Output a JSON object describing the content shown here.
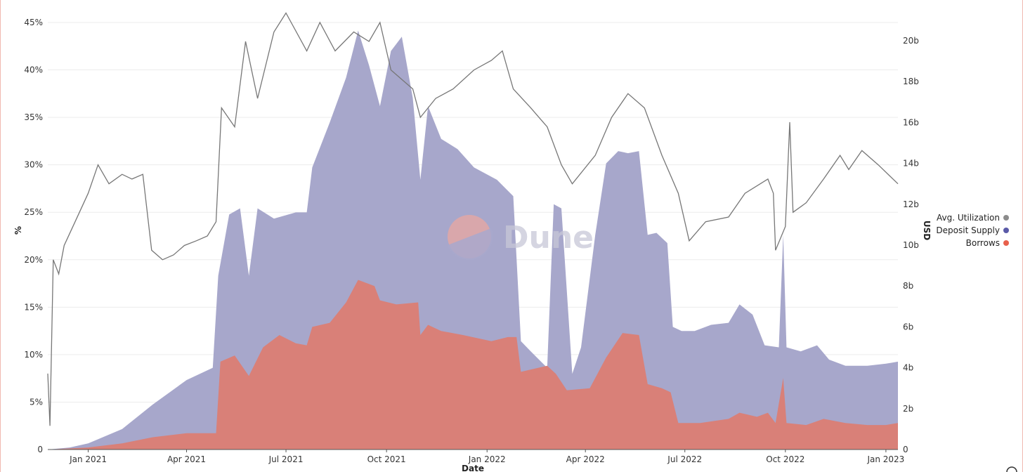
{
  "chart_data": {
    "type": "area",
    "xlabel": "Date",
    "ylabel_left": "%",
    "ylabel_right": "USD",
    "x_ticks": [
      "Jan 2021",
      "Apr 2021",
      "Jul 2021",
      "Oct 2021",
      "Jan 2022",
      "Apr 2022",
      "Jul 2022",
      "Oct 2022",
      "Jan 2023"
    ],
    "y_left_ticks": [
      "0",
      "5%",
      "10%",
      "15%",
      "20%",
      "25%",
      "30%",
      "35%",
      "40%",
      "45%"
    ],
    "y_right_ticks": [
      "0",
      "2b",
      "4b",
      "6b",
      "8b",
      "10b",
      "12b",
      "14b",
      "16b",
      "18b",
      "20b"
    ],
    "y_left_range": [
      0,
      45
    ],
    "y_right_range": [
      0,
      20
    ],
    "x_range": [
      "2020-11-25",
      "2023-01-12"
    ],
    "grid": true,
    "legend_position": "right",
    "legend": [
      {
        "name": "Avg. Utilization",
        "color": "#8c8c8c"
      },
      {
        "name": "Deposit Supply",
        "color": "#5a5aa8"
      },
      {
        "name": "Borrows",
        "color": "#e8604c"
      }
    ],
    "watermark": "Dune",
    "colors": {
      "deposit": "#a7a7cb",
      "borrows": "#d98078",
      "utilization": "#777777"
    },
    "series": [
      {
        "name": "Deposit Supply",
        "axis": "right",
        "unit": "USD billions",
        "points": [
          [
            "2020-11-25",
            0.0
          ],
          [
            "2020-12-15",
            0.1
          ],
          [
            "2021-01-01",
            0.3
          ],
          [
            "2021-02-01",
            1.0
          ],
          [
            "2021-03-01",
            2.2
          ],
          [
            "2021-04-01",
            3.4
          ],
          [
            "2021-04-25",
            4.0
          ],
          [
            "2021-04-30",
            8.5
          ],
          [
            "2021-05-10",
            11.5
          ],
          [
            "2021-05-20",
            11.8
          ],
          [
            "2021-05-28",
            8.5
          ],
          [
            "2021-06-05",
            11.8
          ],
          [
            "2021-06-20",
            11.3
          ],
          [
            "2021-07-10",
            11.6
          ],
          [
            "2021-07-20",
            11.6
          ],
          [
            "2021-07-25",
            13.8
          ],
          [
            "2021-08-10",
            16.0
          ],
          [
            "2021-08-25",
            18.2
          ],
          [
            "2021-09-05",
            20.5
          ],
          [
            "2021-09-15",
            18.8
          ],
          [
            "2021-09-25",
            16.8
          ],
          [
            "2021-10-05",
            19.5
          ],
          [
            "2021-10-15",
            20.2
          ],
          [
            "2021-10-25",
            17.2
          ],
          [
            "2021-11-01",
            13.2
          ],
          [
            "2021-11-08",
            16.8
          ],
          [
            "2021-11-20",
            15.2
          ],
          [
            "2021-12-05",
            14.7
          ],
          [
            "2021-12-20",
            13.8
          ],
          [
            "2022-01-10",
            13.2
          ],
          [
            "2022-01-25",
            12.4
          ],
          [
            "2022-02-01",
            5.3
          ],
          [
            "2022-02-10",
            4.8
          ],
          [
            "2022-02-25",
            4.0
          ],
          [
            "2022-03-03",
            12.0
          ],
          [
            "2022-03-10",
            11.8
          ],
          [
            "2022-03-20",
            3.7
          ],
          [
            "2022-03-28",
            5.0
          ],
          [
            "2022-04-10",
            10.5
          ],
          [
            "2022-04-20",
            14.0
          ],
          [
            "2022-05-01",
            14.6
          ],
          [
            "2022-05-10",
            14.5
          ],
          [
            "2022-05-20",
            14.6
          ],
          [
            "2022-05-28",
            10.5
          ],
          [
            "2022-06-05",
            10.6
          ],
          [
            "2022-06-15",
            10.1
          ],
          [
            "2022-06-20",
            6.0
          ],
          [
            "2022-06-28",
            5.8
          ],
          [
            "2022-07-10",
            5.8
          ],
          [
            "2022-07-25",
            6.1
          ],
          [
            "2022-08-10",
            6.2
          ],
          [
            "2022-08-20",
            7.1
          ],
          [
            "2022-09-01",
            6.6
          ],
          [
            "2022-09-12",
            5.1
          ],
          [
            "2022-09-25",
            5.0
          ],
          [
            "2022-09-29",
            10.5
          ],
          [
            "2022-10-02",
            5.0
          ],
          [
            "2022-10-15",
            4.8
          ],
          [
            "2022-10-30",
            5.1
          ],
          [
            "2022-11-10",
            4.4
          ],
          [
            "2022-11-25",
            4.1
          ],
          [
            "2022-12-15",
            4.1
          ],
          [
            "2023-01-01",
            4.2
          ],
          [
            "2023-01-12",
            4.3
          ]
        ]
      },
      {
        "name": "Borrows",
        "axis": "right",
        "unit": "USD billions",
        "points": [
          [
            "2020-11-25",
            0.0
          ],
          [
            "2021-01-01",
            0.1
          ],
          [
            "2021-02-01",
            0.3
          ],
          [
            "2021-03-01",
            0.6
          ],
          [
            "2021-04-01",
            0.8
          ],
          [
            "2021-04-28",
            0.8
          ],
          [
            "2021-05-02",
            4.3
          ],
          [
            "2021-05-15",
            4.6
          ],
          [
            "2021-05-28",
            3.6
          ],
          [
            "2021-06-10",
            5.0
          ],
          [
            "2021-06-25",
            5.6
          ],
          [
            "2021-07-10",
            5.2
          ],
          [
            "2021-07-20",
            5.1
          ],
          [
            "2021-07-25",
            6.0
          ],
          [
            "2021-08-10",
            6.2
          ],
          [
            "2021-08-25",
            7.2
          ],
          [
            "2021-09-05",
            8.3
          ],
          [
            "2021-09-20",
            8.0
          ],
          [
            "2021-09-25",
            7.3
          ],
          [
            "2021-10-10",
            7.1
          ],
          [
            "2021-10-30",
            7.2
          ],
          [
            "2021-11-01",
            5.6
          ],
          [
            "2021-11-08",
            6.1
          ],
          [
            "2021-11-20",
            5.8
          ],
          [
            "2021-12-10",
            5.6
          ],
          [
            "2022-01-05",
            5.3
          ],
          [
            "2022-01-20",
            5.5
          ],
          [
            "2022-01-28",
            5.5
          ],
          [
            "2022-02-01",
            3.8
          ],
          [
            "2022-02-25",
            4.1
          ],
          [
            "2022-03-05",
            3.7
          ],
          [
            "2022-03-15",
            2.9
          ],
          [
            "2022-04-05",
            3.0
          ],
          [
            "2022-04-20",
            4.5
          ],
          [
            "2022-05-05",
            5.7
          ],
          [
            "2022-05-20",
            5.6
          ],
          [
            "2022-05-28",
            3.2
          ],
          [
            "2022-06-10",
            3.0
          ],
          [
            "2022-06-18",
            2.8
          ],
          [
            "2022-06-25",
            1.3
          ],
          [
            "2022-07-15",
            1.3
          ],
          [
            "2022-08-10",
            1.5
          ],
          [
            "2022-08-20",
            1.8
          ],
          [
            "2022-09-05",
            1.6
          ],
          [
            "2022-09-15",
            1.8
          ],
          [
            "2022-09-22",
            1.3
          ],
          [
            "2022-09-29",
            3.5
          ],
          [
            "2022-10-02",
            1.3
          ],
          [
            "2022-10-20",
            1.2
          ],
          [
            "2022-11-05",
            1.5
          ],
          [
            "2022-11-25",
            1.3
          ],
          [
            "2022-12-15",
            1.2
          ],
          [
            "2023-01-01",
            1.2
          ],
          [
            "2023-01-12",
            1.3
          ]
        ]
      },
      {
        "name": "Avg. Utilization",
        "axis": "left",
        "unit": "percent",
        "points": [
          [
            "2020-11-25",
            8.0
          ],
          [
            "2020-11-27",
            2.5
          ],
          [
            "2020-11-30",
            20.0
          ],
          [
            "2020-12-05",
            18.5
          ],
          [
            "2020-12-10",
            21.5
          ],
          [
            "2020-12-20",
            24.0
          ],
          [
            "2021-01-01",
            27.0
          ],
          [
            "2021-01-10",
            30.0
          ],
          [
            "2021-01-20",
            28.0
          ],
          [
            "2021-02-01",
            29.0
          ],
          [
            "2021-02-10",
            28.5
          ],
          [
            "2021-02-20",
            29.0
          ],
          [
            "2021-02-28",
            21.0
          ],
          [
            "2021-03-10",
            20.0
          ],
          [
            "2021-03-20",
            20.5
          ],
          [
            "2021-03-30",
            21.5
          ],
          [
            "2021-04-10",
            22.0
          ],
          [
            "2021-04-20",
            22.5
          ],
          [
            "2021-04-28",
            24.0
          ],
          [
            "2021-05-03",
            36.0
          ],
          [
            "2021-05-15",
            34.0
          ],
          [
            "2021-05-25",
            43.0
          ],
          [
            "2021-06-05",
            37.0
          ],
          [
            "2021-06-20",
            44.0
          ],
          [
            "2021-07-01",
            46.0
          ],
          [
            "2021-07-20",
            42.0
          ],
          [
            "2021-08-01",
            45.0
          ],
          [
            "2021-08-15",
            42.0
          ],
          [
            "2021-09-01",
            44.0
          ],
          [
            "2021-09-15",
            43.0
          ],
          [
            "2021-09-25",
            45.0
          ],
          [
            "2021-10-05",
            40.0
          ],
          [
            "2021-10-15",
            39.0
          ],
          [
            "2021-10-25",
            38.0
          ],
          [
            "2021-11-01",
            35.0
          ],
          [
            "2021-11-15",
            37.0
          ],
          [
            "2021-12-01",
            38.0
          ],
          [
            "2021-12-20",
            40.0
          ],
          [
            "2022-01-05",
            41.0
          ],
          [
            "2022-01-15",
            42.0
          ],
          [
            "2022-01-25",
            38.0
          ],
          [
            "2022-02-10",
            36.0
          ],
          [
            "2022-02-25",
            34.0
          ],
          [
            "2022-03-10",
            30.0
          ],
          [
            "2022-03-20",
            28.0
          ],
          [
            "2022-04-10",
            31.0
          ],
          [
            "2022-04-25",
            35.0
          ],
          [
            "2022-05-10",
            37.5
          ],
          [
            "2022-05-25",
            36.0
          ],
          [
            "2022-06-10",
            31.0
          ],
          [
            "2022-06-25",
            27.0
          ],
          [
            "2022-07-05",
            22.0
          ],
          [
            "2022-07-20",
            24.0
          ],
          [
            "2022-08-10",
            24.5
          ],
          [
            "2022-08-25",
            27.0
          ],
          [
            "2022-09-15",
            28.5
          ],
          [
            "2022-09-20",
            27.0
          ],
          [
            "2022-09-22",
            21.0
          ],
          [
            "2022-10-01",
            23.5
          ],
          [
            "2022-10-05",
            34.5
          ],
          [
            "2022-10-08",
            25.0
          ],
          [
            "2022-10-20",
            26.0
          ],
          [
            "2022-11-05",
            28.5
          ],
          [
            "2022-11-20",
            31.0
          ],
          [
            "2022-11-28",
            29.5
          ],
          [
            "2022-12-10",
            31.5
          ],
          [
            "2022-12-25",
            30.0
          ],
          [
            "2023-01-12",
            28.0
          ]
        ]
      }
    ]
  }
}
